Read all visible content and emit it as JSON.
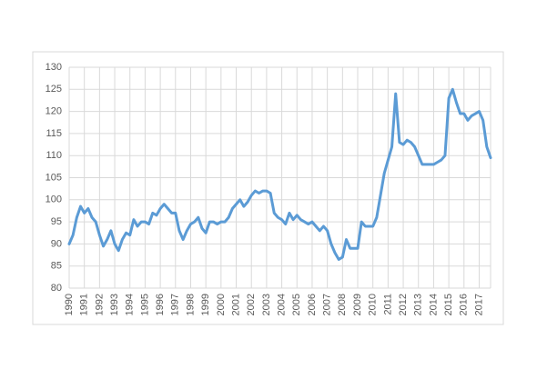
{
  "chart_data": {
    "type": "line",
    "categories": [
      "1990",
      null,
      null,
      null,
      "1991",
      null,
      null,
      null,
      "1992",
      null,
      null,
      null,
      "1993",
      null,
      null,
      null,
      "1994",
      null,
      null,
      null,
      "1995",
      null,
      null,
      null,
      "1996",
      null,
      null,
      null,
      "1997",
      null,
      null,
      null,
      "1998",
      null,
      null,
      null,
      "1999",
      null,
      null,
      null,
      "2000",
      null,
      null,
      null,
      "2001",
      null,
      null,
      null,
      "2002",
      null,
      null,
      null,
      "2003",
      null,
      null,
      null,
      "2004",
      null,
      null,
      null,
      "2005",
      null,
      null,
      null,
      "2006",
      null,
      null,
      null,
      "2007",
      null,
      null,
      null,
      "2008",
      null,
      null,
      null,
      "2009",
      null,
      null,
      null,
      "2010",
      null,
      null,
      null,
      "2011",
      null,
      null,
      null,
      "2012",
      null,
      null,
      null,
      "2013",
      null,
      null,
      null,
      "2014",
      null,
      null,
      null,
      "2015",
      null,
      null,
      null,
      "2016",
      null,
      null,
      null,
      "2017",
      null,
      null,
      null
    ],
    "series": [
      {
        "color": "#5b9bd5",
        "values": [
          90,
          92,
          96,
          98.5,
          97,
          98,
          96,
          95,
          92,
          89.5,
          91,
          93,
          90,
          88.5,
          91,
          92.5,
          92,
          95.5,
          94,
          95,
          95,
          94.5,
          97,
          96.5,
          98,
          99,
          98,
          97,
          97,
          93,
          91,
          93,
          94.5,
          95,
          96,
          93.5,
          92.5,
          95,
          95,
          94.5,
          95,
          95,
          96,
          98,
          99,
          100,
          98.5,
          99.5,
          101,
          102,
          101.5,
          102,
          102,
          101.5,
          97,
          96,
          95.5,
          94.5,
          97,
          95.5,
          96.5,
          95.5,
          95,
          94.5,
          95,
          94,
          93,
          94,
          93,
          90,
          88,
          86.5,
          87,
          91,
          89,
          89,
          89,
          95,
          94,
          94,
          94,
          96,
          101,
          106,
          109,
          112,
          124,
          113,
          112.5,
          113.5,
          113,
          112,
          110,
          108,
          108,
          108,
          108,
          108.5,
          109,
          110,
          123,
          125,
          122,
          119.5,
          119.5,
          118,
          119,
          119.5,
          120,
          118,
          112,
          109.5
        ]
      }
    ],
    "ylim": [
      80,
      130
    ],
    "yticks": [
      80,
      85,
      90,
      95,
      100,
      105,
      110,
      115,
      120,
      125,
      130
    ],
    "grid": true
  }
}
